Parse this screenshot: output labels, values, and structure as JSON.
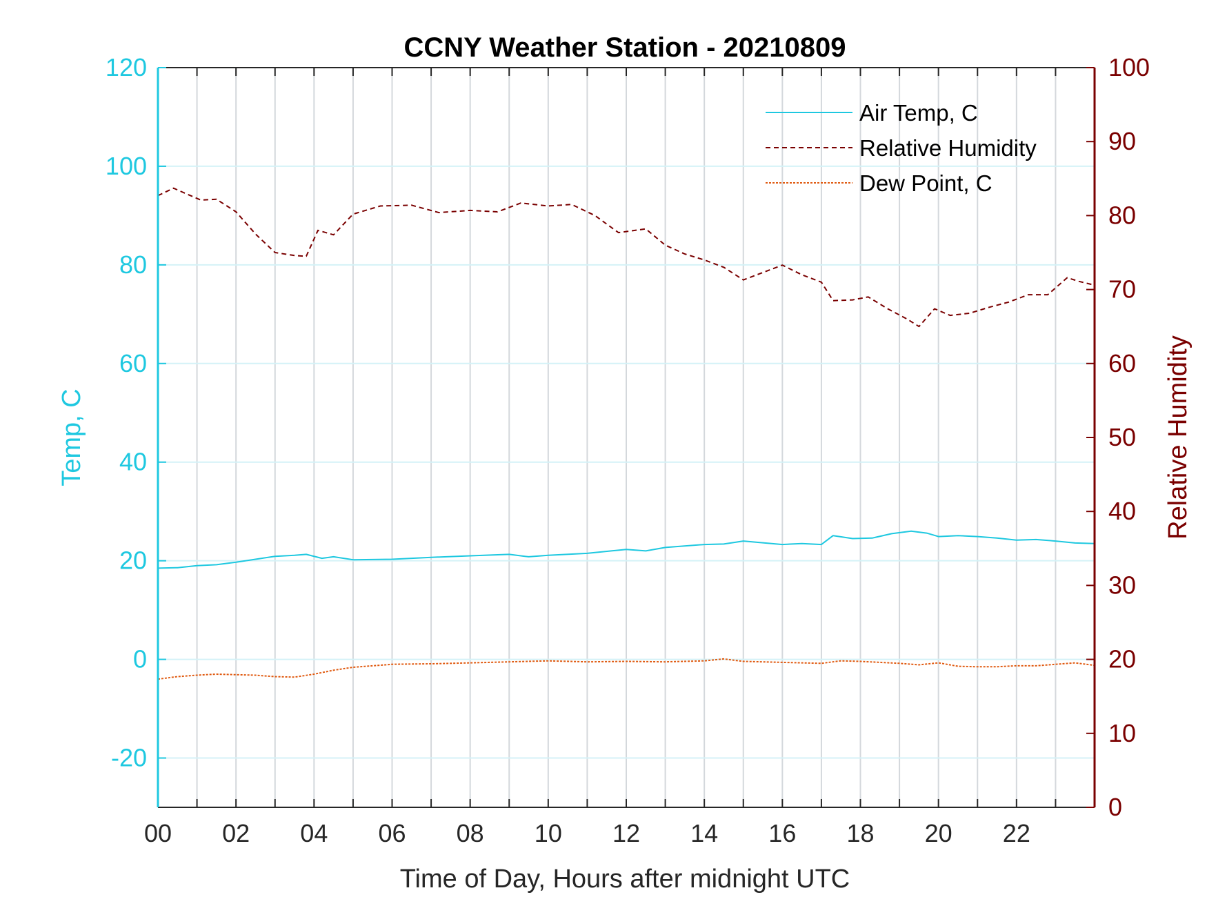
{
  "chart_data": {
    "type": "line",
    "title": "CCNY Weather Station - 20210809",
    "xlabel": "Time of Day, Hours after midnight UTC",
    "ylabel_left": "Temp, C",
    "ylabel_right": "Relative Humidity",
    "xlim": [
      0,
      24
    ],
    "ylim_left": [
      -30,
      120
    ],
    "ylim_right": [
      0,
      100
    ],
    "x_ticks": [
      0,
      2,
      4,
      6,
      8,
      10,
      12,
      14,
      16,
      18,
      20,
      22
    ],
    "x_tick_labels": [
      "00",
      "02",
      "04",
      "06",
      "08",
      "10",
      "12",
      "14",
      "16",
      "18",
      "20",
      "22"
    ],
    "y_left_ticks": [
      -20,
      0,
      20,
      40,
      60,
      80,
      100,
      120
    ],
    "y_left_tick_labels": [
      "-20",
      "0",
      "20",
      "40",
      "60",
      "80",
      "100",
      "120"
    ],
    "y_right_ticks": [
      0,
      10,
      20,
      30,
      40,
      50,
      60,
      70,
      80,
      90,
      100
    ],
    "y_right_tick_labels": [
      "0",
      "10",
      "20",
      "30",
      "40",
      "50",
      "60",
      "70",
      "80",
      "90",
      "100"
    ],
    "grid": true,
    "legend_position": "top-right",
    "colors": {
      "left_axis": "#1ec8e0",
      "right_axis": "#7a0000",
      "air_temp": "#1ec8e0",
      "humidity": "#7a0000",
      "dew_point": "#e05a10"
    },
    "series": [
      {
        "name": "Air Temp, C",
        "axis": "left",
        "style": "solid",
        "color": "#1ec8e0",
        "x": [
          0,
          0.5,
          1,
          1.5,
          2,
          2.5,
          3,
          3.5,
          3.8,
          4.2,
          4.5,
          5,
          6,
          7,
          8,
          9,
          9.5,
          10,
          11,
          12,
          12.5,
          13,
          14,
          14.5,
          15,
          16,
          16.5,
          17,
          17.3,
          17.8,
          18.3,
          18.8,
          19.3,
          19.7,
          20,
          20.5,
          21,
          21.5,
          22,
          22.5,
          23,
          23.5,
          24
        ],
        "y": [
          18.5,
          18.6,
          19.0,
          19.2,
          19.7,
          20.3,
          20.9,
          21.1,
          21.3,
          20.5,
          20.8,
          20.2,
          20.3,
          20.7,
          21.0,
          21.3,
          20.8,
          21.1,
          21.5,
          22.3,
          22.0,
          22.7,
          23.3,
          23.4,
          24.0,
          23.3,
          23.5,
          23.3,
          25.1,
          24.5,
          24.6,
          25.5,
          26.0,
          25.6,
          24.9,
          25.1,
          24.9,
          24.6,
          24.2,
          24.3,
          24.0,
          23.6,
          23.5
        ]
      },
      {
        "name": "Relative Humidity",
        "axis": "right",
        "style": "dashed",
        "color": "#7a0000",
        "x": [
          0,
          0.4,
          0.7,
          1.1,
          1.5,
          2,
          2.5,
          3,
          3.5,
          3.8,
          4.1,
          4.5,
          5,
          5.7,
          6.5,
          7.2,
          8,
          8.7,
          9.3,
          10,
          10.6,
          11.2,
          11.8,
          12.5,
          13,
          13.5,
          14,
          14.5,
          15,
          15.5,
          16,
          16.5,
          17,
          17.3,
          17.8,
          18.2,
          18.7,
          19.2,
          19.5,
          19.9,
          20.3,
          20.8,
          21.3,
          21.8,
          22.3,
          22.8,
          23.3,
          23.6,
          24
        ],
        "y": [
          82.7,
          83.7,
          83.0,
          82.1,
          82.2,
          80.5,
          77.5,
          75.0,
          74.6,
          74.5,
          78.0,
          77.4,
          80.2,
          81.3,
          81.4,
          80.4,
          80.7,
          80.5,
          81.7,
          81.3,
          81.5,
          80.0,
          77.7,
          78.2,
          76.0,
          74.8,
          74.0,
          73.0,
          71.3,
          72.3,
          73.3,
          72.0,
          71.0,
          68.5,
          68.6,
          69.0,
          67.4,
          66.0,
          65.0,
          67.4,
          66.5,
          66.8,
          67.6,
          68.3,
          69.3,
          69.3,
          71.6,
          71.1,
          70.6
        ]
      },
      {
        "name": "Dew Point, C",
        "axis": "left",
        "style": "dotted",
        "color": "#e05a10",
        "x": [
          0,
          0.5,
          1,
          1.5,
          2,
          2.5,
          3,
          3.5,
          4,
          4.5,
          5,
          5.5,
          6,
          7,
          8,
          9,
          10,
          11,
          12,
          13,
          14,
          14.5,
          15,
          16,
          17,
          17.5,
          18,
          18.5,
          19,
          19.5,
          20,
          20.5,
          21,
          21.5,
          22,
          22.5,
          23,
          23.5,
          24
        ],
        "y": [
          -4.0,
          -3.5,
          -3.2,
          -3.0,
          -3.1,
          -3.2,
          -3.5,
          -3.6,
          -3.0,
          -2.2,
          -1.6,
          -1.3,
          -1.0,
          -0.9,
          -0.7,
          -0.5,
          -0.3,
          -0.5,
          -0.4,
          -0.5,
          -0.3,
          0.1,
          -0.4,
          -0.6,
          -0.8,
          -0.3,
          -0.4,
          -0.6,
          -0.8,
          -1.1,
          -0.7,
          -1.4,
          -1.5,
          -1.5,
          -1.3,
          -1.3,
          -1.0,
          -0.7,
          -1.2
        ]
      }
    ]
  }
}
